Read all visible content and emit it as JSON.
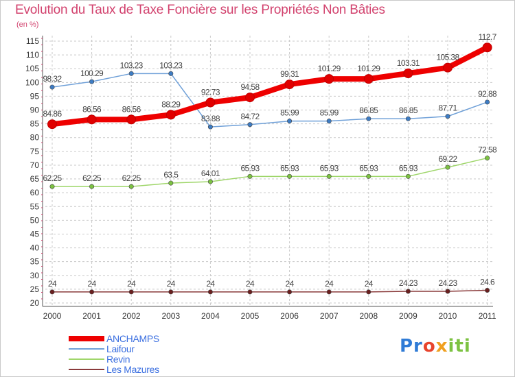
{
  "title": "Evolution du Taux de Taxe Foncière sur les Propriétés Non Bâties",
  "subtitle": "(en %)",
  "logo": {
    "p1": "Pr",
    "p2": "o",
    "p3": "x",
    "p4": "iti"
  },
  "colors": {
    "title": "#d2426e",
    "grid": "#c9c9c9",
    "axis": "#555555",
    "legend_text": "#3b6fe0",
    "label": "#555555"
  },
  "chart_data": {
    "type": "line",
    "title": "Evolution du Taux de Taxe Foncière sur les Propriétés Non Bâties",
    "ylabel": "(en %)",
    "xlabel": "",
    "ylim": [
      20,
      115
    ],
    "yticks": [
      20,
      25,
      30,
      35,
      40,
      45,
      50,
      55,
      60,
      65,
      70,
      75,
      80,
      85,
      90,
      95,
      100,
      105,
      110,
      115
    ],
    "categories": [
      "2000",
      "2001",
      "2002",
      "2003",
      "2004",
      "2005",
      "2006",
      "2007",
      "2008",
      "2009",
      "2010",
      "2011"
    ],
    "grid": true,
    "legend_position": "bottom-left",
    "series": [
      {
        "name": "ANCHAMPS",
        "color": "#ee0000",
        "marker": "#e00000",
        "thick": true,
        "values": [
          84.86,
          86.56,
          86.56,
          88.29,
          92.73,
          94.58,
          99.31,
          101.29,
          101.29,
          103.31,
          105.38,
          112.7
        ],
        "labels": [
          "84.86",
          "86.56",
          "86.56",
          "88.29",
          "92.73",
          "94.58",
          "99.31",
          "101.29",
          "101.29",
          "103.31",
          "105.38",
          "112.7"
        ]
      },
      {
        "name": "Laifour",
        "color": "#6fa0d8",
        "marker": "#3d7cc4",
        "thick": false,
        "values": [
          98.32,
          100.29,
          103.23,
          103.23,
          83.88,
          84.72,
          85.99,
          85.99,
          86.85,
          86.85,
          87.71,
          92.88
        ],
        "labels": [
          "98.32",
          "100.29",
          "103.23",
          "103.23",
          "83.88",
          "84.72",
          "85.99",
          "85.99",
          "86.85",
          "86.85",
          "87.71",
          "92.88"
        ]
      },
      {
        "name": "Revin",
        "color": "#9fd66a",
        "marker": "#7cc242",
        "thick": false,
        "values": [
          62.25,
          62.25,
          62.25,
          63.5,
          64.01,
          65.93,
          65.93,
          65.93,
          65.93,
          65.93,
          69.22,
          72.58
        ],
        "labels": [
          "62.25",
          "62.25",
          "62.25",
          "63.5",
          "64.01",
          "65.93",
          "65.93",
          "65.93",
          "65.93",
          "65.93",
          "69.22",
          "72.58"
        ]
      },
      {
        "name": "Les Mazures",
        "color": "#8a3a3a",
        "marker": "#6a1f1f",
        "thick": false,
        "values": [
          24,
          24,
          24,
          24,
          24,
          24,
          24,
          24,
          24,
          24.23,
          24.23,
          24.6
        ],
        "labels": [
          "24",
          "24",
          "24",
          "24",
          "24",
          "24",
          "24",
          "24",
          "24",
          "24.23",
          "24.23",
          "24.6"
        ]
      }
    ]
  }
}
